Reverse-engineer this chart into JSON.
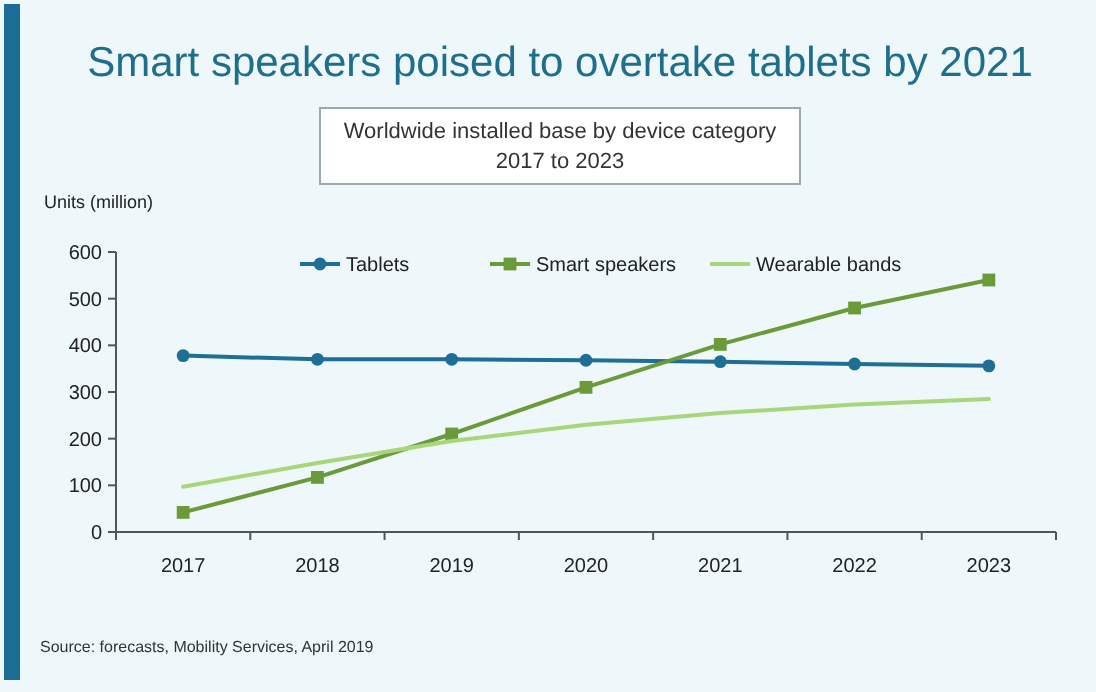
{
  "chart_data": {
    "type": "line",
    "title": "Smart speakers poised to overtake tablets by 2021",
    "subtitle": "Worldwide installed base by device category\n2017 to 2023",
    "ylabel": "Units (million)",
    "annotations": [
      "Source: forecasts, Mobility Services, April 2019"
    ],
    "categories": [
      "2017",
      "2018",
      "2019",
      "2020",
      "2021",
      "2022",
      "2023"
    ],
    "series": [
      {
        "name": "Tablets",
        "color": "#1f6e96",
        "marker": "circle",
        "values": [
          378,
          370,
          370,
          368,
          365,
          360,
          356
        ]
      },
      {
        "name": "Smart speakers",
        "color": "#6a9a3a",
        "marker": "square",
        "values": [
          42,
          117,
          210,
          310,
          402,
          480,
          540
        ]
      },
      {
        "name": "Wearable bands",
        "color": "#a9d67a",
        "marker": "none",
        "values": [
          97,
          148,
          195,
          230,
          255,
          273,
          285
        ]
      }
    ],
    "ylim": [
      0,
      600
    ],
    "yticks": [
      0,
      100,
      200,
      300,
      400,
      500,
      600
    ],
    "grid": false,
    "legend": "top",
    "line_style": "solid"
  }
}
